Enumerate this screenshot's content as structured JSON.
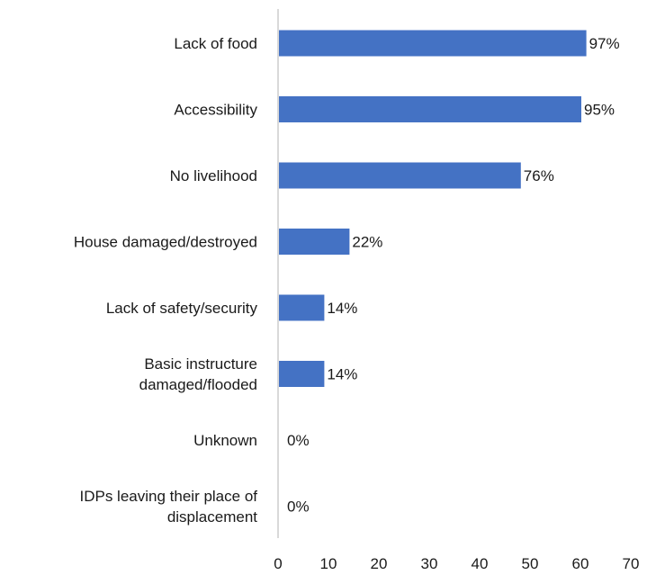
{
  "chart_data": {
    "type": "bar",
    "orientation": "horizontal",
    "categories": [
      [
        "Lack of food"
      ],
      [
        "Accessibility"
      ],
      [
        "No livelihood"
      ],
      [
        "House damaged/destroyed"
      ],
      [
        "Lack of safety/security"
      ],
      [
        "Basic instructure",
        "damaged/flooded"
      ],
      [
        "Unknown"
      ],
      [
        "IDPs leaving their place of",
        "displacement"
      ]
    ],
    "values": [
      61,
      60,
      48,
      14,
      9,
      9,
      0,
      0
    ],
    "data_labels": [
      "97%",
      "95%",
      "76%",
      "22%",
      "14%",
      "14%",
      "0%",
      "0%"
    ],
    "xlim": [
      0,
      70
    ],
    "xticks": [
      0,
      10,
      20,
      30,
      40,
      50,
      60,
      70
    ],
    "grid": false,
    "colors": {
      "bar": "#4472C4",
      "axis": "#d9d9d9"
    }
  }
}
